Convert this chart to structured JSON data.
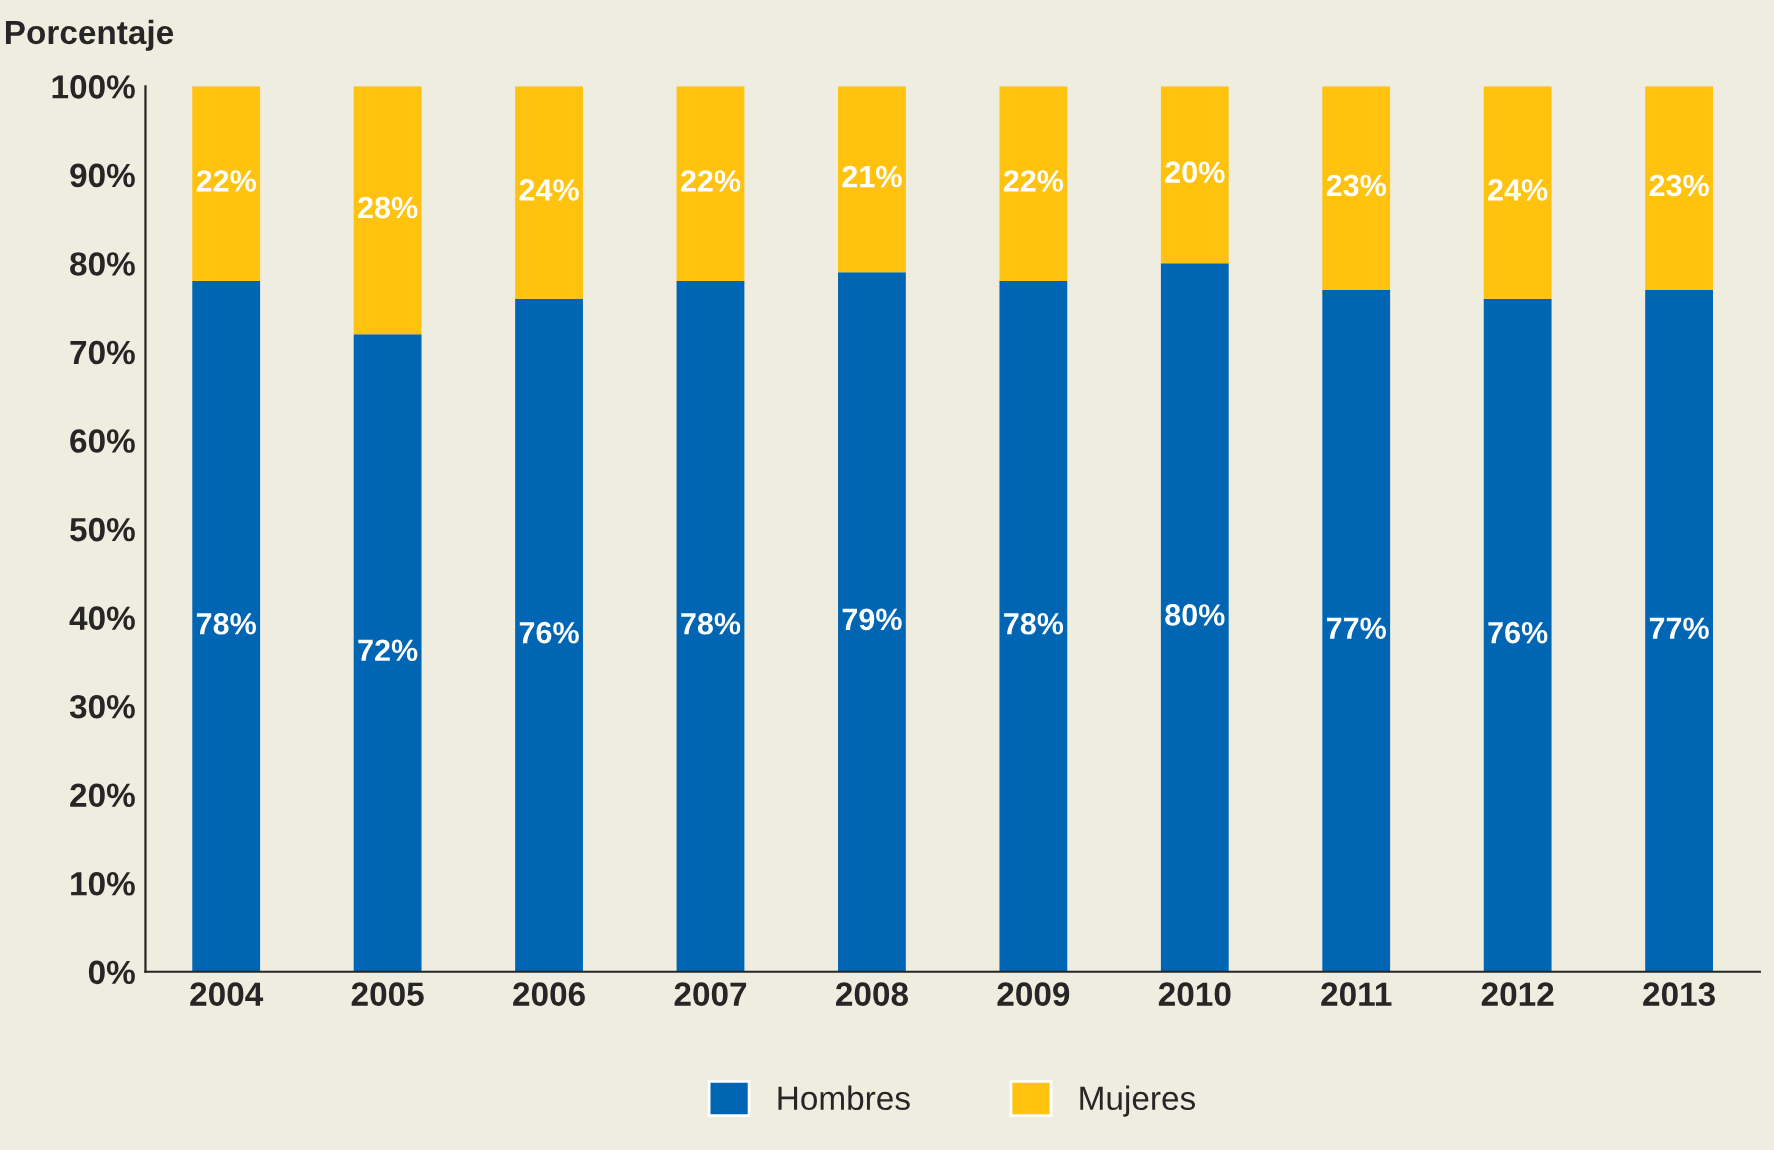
{
  "chart_data": {
    "type": "bar",
    "stacked": true,
    "ylabel": "Porcentaje",
    "categories": [
      "2004",
      "2005",
      "2006",
      "2007",
      "2008",
      "2009",
      "2010",
      "2011",
      "2012",
      "2013"
    ],
    "series": [
      {
        "name": "Hombres",
        "color": "#0066b3",
        "values": [
          78,
          72,
          76,
          78,
          79,
          78,
          80,
          77,
          76,
          77
        ],
        "value_labels": [
          "78%",
          "72%",
          "76%",
          "78%",
          "79%",
          "78%",
          "80%",
          "77%",
          "76%",
          "77%"
        ]
      },
      {
        "name": "Mujeres",
        "color": "#ffc20e",
        "values": [
          22,
          28,
          24,
          22,
          21,
          22,
          20,
          23,
          24,
          23
        ],
        "value_labels": [
          "22%",
          "28%",
          "24%",
          "22%",
          "21%",
          "22%",
          "20%",
          "23%",
          "24%",
          "23%"
        ]
      }
    ],
    "ylim": [
      0,
      100
    ],
    "yticks": [
      {
        "value": 0,
        "label": "0%"
      },
      {
        "value": 10,
        "label": "10%"
      },
      {
        "value": 20,
        "label": "20%"
      },
      {
        "value": 30,
        "label": "30%"
      },
      {
        "value": 40,
        "label": "40%"
      },
      {
        "value": 50,
        "label": "50%"
      },
      {
        "value": 60,
        "label": "60%"
      },
      {
        "value": 70,
        "label": "70%"
      },
      {
        "value": 80,
        "label": "80%"
      },
      {
        "value": 90,
        "label": "90%"
      },
      {
        "value": 100,
        "label": "100%"
      }
    ],
    "grid": false,
    "legend": "bottom"
  }
}
